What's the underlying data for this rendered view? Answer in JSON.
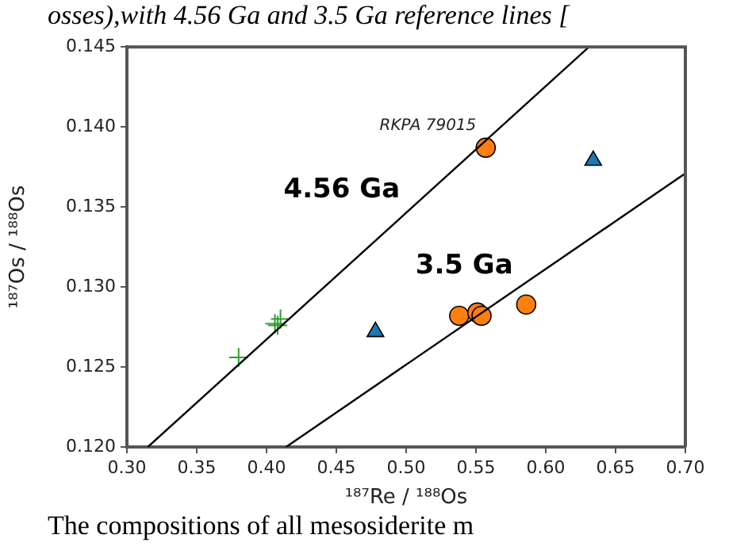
{
  "chart_data": {
    "type": "scatter",
    "xlabel": "¹⁸⁷Re / ¹⁸⁸Os",
    "ylabel": "¹⁸⁷Os / ¹⁸⁸Os",
    "xlim": [
      0.3,
      0.7
    ],
    "xticks": [
      {
        "value": 0.3,
        "label": "0.30"
      },
      {
        "value": 0.35,
        "label": "0.35"
      },
      {
        "value": 0.4,
        "label": "0.40"
      },
      {
        "value": 0.45,
        "label": "0.45"
      },
      {
        "value": 0.5,
        "label": "0.50"
      },
      {
        "value": 0.55,
        "label": "0.55"
      },
      {
        "value": 0.6,
        "label": "0.60"
      },
      {
        "value": 0.65,
        "label": "0.65"
      },
      {
        "value": 0.7,
        "label": "0.70"
      }
    ],
    "ylim": [
      0.12,
      0.145
    ],
    "yticks": [
      {
        "value": 0.12,
        "label": "0.120"
      },
      {
        "value": 0.125,
        "label": "0.125"
      },
      {
        "value": 0.13,
        "label": "0.130"
      },
      {
        "value": 0.135,
        "label": "0.135"
      },
      {
        "value": 0.14,
        "label": "0.140"
      },
      {
        "value": 0.145,
        "label": "0.145"
      }
    ],
    "grid": false,
    "legend": false,
    "series": [
      {
        "name": "4.56 Ga",
        "type": "line",
        "color": "#000000",
        "marker": "none",
        "x": [
          0.315,
          0.631
        ],
        "values": [
          0.12,
          0.145
        ]
      },
      {
        "name": "3.5 Ga",
        "type": "line",
        "color": "#000000",
        "marker": "none",
        "x": [
          0.414,
          0.7
        ],
        "values": [
          0.12,
          0.1371
        ]
      },
      {
        "color": "#2ca02c",
        "marker": "cross",
        "x": [
          0.38,
          0.406,
          0.41,
          0.408
        ],
        "values": [
          0.1256,
          0.1277,
          0.128,
          0.1276
        ]
      },
      {
        "color": "#1f77b4",
        "marker": "triangle",
        "x": [
          0.478,
          0.634
        ],
        "values": [
          0.1272,
          0.1379
        ]
      },
      {
        "color": "#ff7f0e",
        "marker": "circle",
        "x": [
          0.557,
          0.538,
          0.551,
          0.554,
          0.586
        ],
        "values": [
          0.1387,
          0.1282,
          0.1284,
          0.1282,
          0.1289
        ]
      }
    ],
    "annotations": [
      {
        "text": "RKPA 79015",
        "x": 0.557,
        "y": 0.1387
      },
      "osses),with 4.56 Ga and 3.5 Ga reference lines [",
      "The compositions of all mesosiderite m"
    ]
  }
}
